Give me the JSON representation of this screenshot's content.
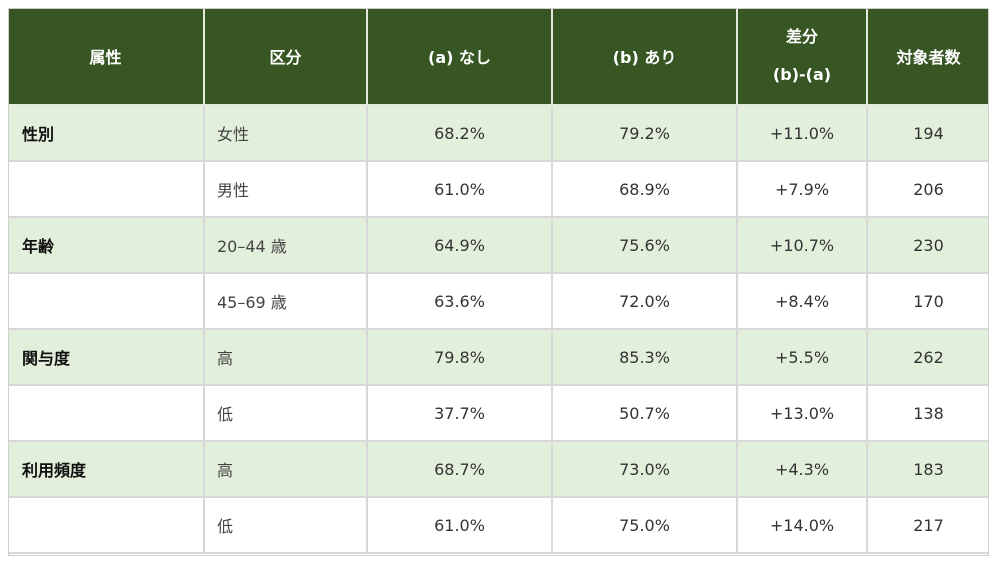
{
  "headers": {
    "attribute": "属性",
    "segment": "区分",
    "without": "(a) なし",
    "with": "(b) あり",
    "diff_line1": "差分",
    "diff_line2": "(b)-(a)",
    "count": "対象者数"
  },
  "rows": [
    {
      "attribute": "性別",
      "segment": "女性",
      "without": "68.2%",
      "with": "79.2%",
      "diff": "+11.0%",
      "count": "194"
    },
    {
      "attribute": "",
      "segment": "男性",
      "without": "61.0%",
      "with": "68.9%",
      "diff": "+7.9%",
      "count": "206"
    },
    {
      "attribute": "年齢",
      "segment": "20–44 歳",
      "without": "64.9%",
      "with": "75.6%",
      "diff": "+10.7%",
      "count": "230"
    },
    {
      "attribute": "",
      "segment": "45–69 歳",
      "without": "63.6%",
      "with": "72.0%",
      "diff": "+8.4%",
      "count": "170"
    },
    {
      "attribute": "関与度",
      "segment": "高",
      "without": "79.8%",
      "with": "85.3%",
      "diff": "+5.5%",
      "count": "262"
    },
    {
      "attribute": "",
      "segment": "低",
      "without": "37.7%",
      "with": "50.7%",
      "diff": "+13.0%",
      "count": "138"
    },
    {
      "attribute": "利用頻度",
      "segment": "高",
      "without": "68.7%",
      "with": "73.0%",
      "diff": "+4.3%",
      "count": "183"
    },
    {
      "attribute": "",
      "segment": "低",
      "without": "61.0%",
      "with": "75.0%",
      "diff": "+14.0%",
      "count": "217"
    }
  ],
  "colors": {
    "header_bg": "#375623",
    "header_text": "#ffffff",
    "row_shade": "#e2efda",
    "row_plain": "#ffffff"
  }
}
